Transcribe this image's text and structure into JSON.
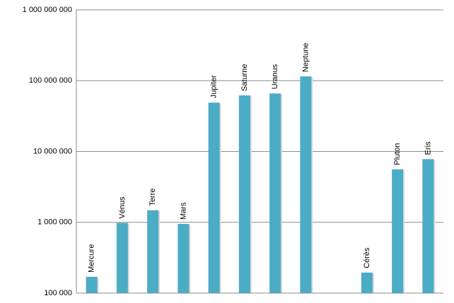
{
  "chart_data": {
    "type": "bar",
    "log_scale": true,
    "grid": true,
    "color": "#4bacc6",
    "categories": [
      "Mercure",
      "Vénus",
      "Terre",
      "Mars",
      "Jupiter",
      "Saturne",
      "Uranus",
      "Neptune",
      null,
      "Cérès",
      "Pluton",
      "Eris"
    ],
    "values": [
      170000,
      980000,
      1480000,
      950000,
      49000000,
      62000000,
      66000000,
      115000000,
      null,
      195000,
      5600000,
      7800000
    ],
    "ylim": [
      100000,
      1000000000
    ],
    "yticks": [
      {
        "value": 100000,
        "label": "100 000"
      },
      {
        "value": 1000000,
        "label": "1 000 000"
      },
      {
        "value": 10000000,
        "label": "10 000 000"
      },
      {
        "value": 100000000,
        "label": "100 000 000"
      },
      {
        "value": 1000000000,
        "label": "1 000 000 000"
      }
    ]
  }
}
